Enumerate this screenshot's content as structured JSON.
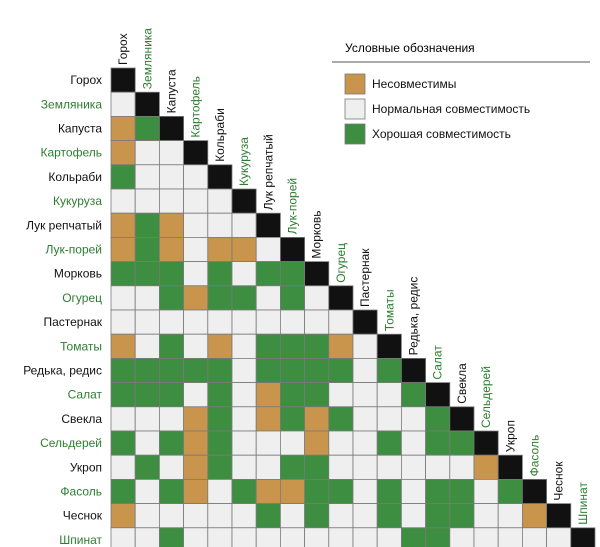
{
  "chart_data": {
    "type": "heatmap",
    "colors": {
      "incompatible": "#c9954c",
      "normal": "#efefef",
      "good": "#3e8e41",
      "diagonal": "#111111",
      "label_green": "#2e7d32",
      "label_black": "#111111",
      "border": "#7a7a7a"
    },
    "legend": {
      "title": "Условные обозначения",
      "items": [
        {
          "key": "incompatible",
          "label": "Несовместимы"
        },
        {
          "key": "normal",
          "label": "Нормальная совместимость"
        },
        {
          "key": "good",
          "label": "Хорошая совместимость"
        }
      ]
    },
    "labels": [
      {
        "text": "Горох",
        "green": false
      },
      {
        "text": "Земляника",
        "green": true
      },
      {
        "text": "Капуста",
        "green": false
      },
      {
        "text": "Картофель",
        "green": true
      },
      {
        "text": "Кольраби",
        "green": false
      },
      {
        "text": "Кукуруза",
        "green": true
      },
      {
        "text": "Лук репчатый",
        "green": false
      },
      {
        "text": "Лук-порей",
        "green": true
      },
      {
        "text": "Морковь",
        "green": false
      },
      {
        "text": "Огурец",
        "green": true
      },
      {
        "text": "Пастернак",
        "green": false
      },
      {
        "text": "Томаты",
        "green": true
      },
      {
        "text": "Редька, редис",
        "green": false
      },
      {
        "text": "Салат",
        "green": true
      },
      {
        "text": "Свекла",
        "green": false
      },
      {
        "text": "Сельдерей",
        "green": true
      },
      {
        "text": "Укроп",
        "green": false
      },
      {
        "text": "Фасоль",
        "green": true
      },
      {
        "text": "Чеснок",
        "green": false
      },
      {
        "text": "Шпинат",
        "green": true
      }
    ],
    "rows": [
      "",
      "N",
      "IG",
      "INN",
      "GNNN",
      "NNNNN",
      "IGINNN",
      "IGINIIN",
      "GGGNGNGG",
      "NNGIGGNGN",
      "NNNNNNNNNN",
      "INGNINGGGIN",
      "GGGGGNGGGGNG",
      "GGGNGNIGGNNNG",
      "NNNIGNIGIGNNNG",
      "GNGIGNNNINNGNGG",
      "NGNIGNNGGNNNNNNI",
      "GNGINGIIGGNGNGGNG",
      "INNNNNGNGNNGNGGNNI",
      "NNGNNNNNNNNNGGNNNNN"
    ]
  }
}
